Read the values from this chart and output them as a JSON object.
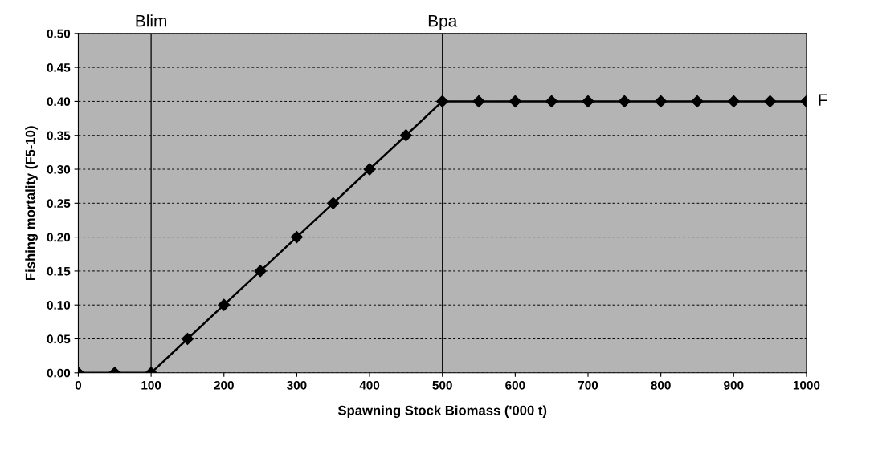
{
  "chart_data": {
    "type": "line",
    "xlabel": "Spawning Stock Biomass ('000 t)",
    "ylabel": "Fishing mortality (F5-10)",
    "x": [
      0,
      50,
      100,
      150,
      200,
      250,
      300,
      350,
      400,
      450,
      500,
      550,
      600,
      650,
      700,
      750,
      800,
      850,
      900,
      950,
      1000
    ],
    "series": [
      {
        "name": "F",
        "color": "#000000",
        "values": [
          0,
          0,
          0,
          0.05,
          0.1,
          0.15,
          0.2,
          0.25,
          0.3,
          0.35,
          0.4,
          0.4,
          0.4,
          0.4,
          0.4,
          0.4,
          0.4,
          0.4,
          0.4,
          0.4,
          0.4
        ]
      }
    ],
    "xlim": [
      0,
      1000
    ],
    "xticks": [
      0,
      100,
      200,
      300,
      400,
      500,
      600,
      700,
      800,
      900,
      1000
    ],
    "ylim": [
      0,
      0.5
    ],
    "yticks": [
      {
        "value": 0,
        "label": "0.00"
      },
      {
        "value": 0.05,
        "label": "0.05"
      },
      {
        "value": 0.1,
        "label": "0.10"
      },
      {
        "value": 0.15,
        "label": "0.15"
      },
      {
        "value": 0.2,
        "label": "0.20"
      },
      {
        "value": 0.25,
        "label": "0.25"
      },
      {
        "value": 0.3,
        "label": "0.30"
      },
      {
        "value": 0.35,
        "label": "0.35"
      },
      {
        "value": 0.4,
        "label": "0.40"
      },
      {
        "value": 0.45,
        "label": "0.45"
      },
      {
        "value": 0.5,
        "label": "0.50"
      }
    ],
    "ref_lines": [
      {
        "axis": "x",
        "value": 100,
        "label": "Blim",
        "color": "#000000",
        "line_style": "solid"
      },
      {
        "axis": "x",
        "value": 500,
        "label": "Bpa",
        "color": "#000000",
        "line_style": "solid"
      }
    ],
    "grid": "y",
    "legend": false,
    "marker": "diamond",
    "line_style": "solid"
  }
}
